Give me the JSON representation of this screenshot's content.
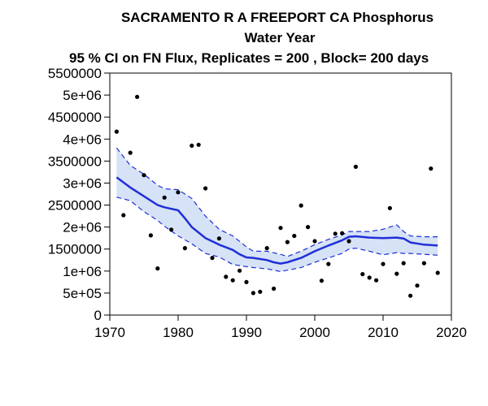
{
  "chart_data": {
    "type": "line",
    "title_lines": [
      "SACRAMENTO R A FREEPORT CA   Phosphorus",
      "Water Year",
      "95 % CI on FN Flux, Replicates = 200 , Block= 200 days"
    ],
    "xlabel": "",
    "ylabel": "",
    "xlim": [
      1970,
      2020
    ],
    "ylim": [
      0,
      5500000
    ],
    "x_ticks": [
      1970,
      1980,
      1990,
      2000,
      2010,
      2020
    ],
    "x_tick_labels": [
      "1970",
      "1980",
      "1990",
      "2000",
      "2010",
      "2020"
    ],
    "y_ticks": [
      0,
      500000,
      1000000,
      1500000,
      2000000,
      2500000,
      3000000,
      3500000,
      4000000,
      4500000,
      5000000,
      5500000
    ],
    "y_tick_labels": [
      "0",
      "5e+05",
      "1e+06",
      "1500000",
      "2e+06",
      "2500000",
      "3e+06",
      "3500000",
      "4e+06",
      "4500000",
      "5e+06",
      "5500000"
    ],
    "grid": false,
    "colors": {
      "flux_line": "#1f2fd6",
      "ci_fill": "#d6e2f5",
      "ci_line": "#1f2fd6",
      "points": "#000000"
    },
    "series": [
      {
        "kind": "points",
        "x": [
          1971,
          1972,
          1973,
          1974,
          1975,
          1976,
          1977,
          1978,
          1979,
          1980,
          1981,
          1982,
          1983,
          1984,
          1985,
          1986,
          1987,
          1988,
          1989,
          1990,
          1991,
          1992,
          1993,
          1994,
          1995,
          1996,
          1997,
          1998,
          1999,
          2000,
          2001,
          2002,
          2003,
          2004,
          2005,
          2006,
          2007,
          2008,
          2009,
          2010,
          2011,
          2012,
          2013,
          2014,
          2015,
          2016,
          2017,
          2018
        ],
        "y": [
          4170000,
          2270000,
          3690000,
          4960000,
          3180000,
          1810000,
          1060000,
          2670000,
          1940000,
          2790000,
          1520000,
          3850000,
          3870000,
          2880000,
          1300000,
          1740000,
          870000,
          790000,
          1010000,
          750000,
          500000,
          530000,
          1520000,
          600000,
          1980000,
          1660000,
          1800000,
          2490000,
          2000000,
          1680000,
          780000,
          1160000,
          1850000,
          1860000,
          1680000,
          3370000,
          930000,
          850000,
          790000,
          1160000,
          2430000,
          940000,
          1180000,
          440000,
          670000,
          1180000,
          3330000,
          960000
        ]
      },
      {
        "kind": "flux",
        "x": [
          1971,
          1973,
          1975,
          1977,
          1978,
          1980,
          1981,
          1982,
          1984,
          1986,
          1988,
          1989,
          1990,
          1991,
          1993,
          1994,
          1995,
          1996,
          1998,
          2000,
          2002,
          2004,
          2005,
          2006,
          2008,
          2010,
          2012,
          2013,
          2014,
          2016,
          2018
        ],
        "y": [
          3130000,
          2900000,
          2700000,
          2500000,
          2450000,
          2380000,
          2200000,
          2000000,
          1750000,
          1600000,
          1480000,
          1380000,
          1310000,
          1300000,
          1250000,
          1200000,
          1170000,
          1200000,
          1300000,
          1450000,
          1580000,
          1700000,
          1780000,
          1790000,
          1760000,
          1750000,
          1760000,
          1740000,
          1650000,
          1600000,
          1580000
        ]
      },
      {
        "kind": "ci_upper",
        "x": [
          1971,
          1973,
          1975,
          1977,
          1978,
          1980,
          1982,
          1984,
          1986,
          1988,
          1990,
          1991,
          1993,
          1995,
          1996,
          1998,
          2000,
          2002,
          2004,
          2005,
          2006,
          2008,
          2010,
          2011,
          2012,
          2013,
          2014,
          2016,
          2018
        ],
        "y": [
          3800000,
          3400000,
          3200000,
          2950000,
          2870000,
          2850000,
          2650000,
          2250000,
          1950000,
          1800000,
          1550000,
          1450000,
          1450000,
          1380000,
          1330000,
          1450000,
          1600000,
          1720000,
          1820000,
          1900000,
          1900000,
          1900000,
          1950000,
          2000000,
          2050000,
          1900000,
          1800000,
          1780000,
          1780000
        ]
      },
      {
        "kind": "ci_lower",
        "x": [
          1971,
          1973,
          1975,
          1977,
          1978,
          1980,
          1982,
          1984,
          1986,
          1988,
          1990,
          1991,
          1993,
          1995,
          1996,
          1998,
          2000,
          2002,
          2004,
          2005,
          2006,
          2008,
          2010,
          2012,
          2013,
          2014,
          2016,
          2018
        ],
        "y": [
          2680000,
          2600000,
          2350000,
          2150000,
          2020000,
          1800000,
          1620000,
          1400000,
          1320000,
          1150000,
          1100000,
          1080000,
          1050000,
          990000,
          1020000,
          1080000,
          1200000,
          1300000,
          1400000,
          1500000,
          1520000,
          1450000,
          1370000,
          1420000,
          1400000,
          1400000,
          1380000,
          1360000
        ]
      }
    ]
  }
}
